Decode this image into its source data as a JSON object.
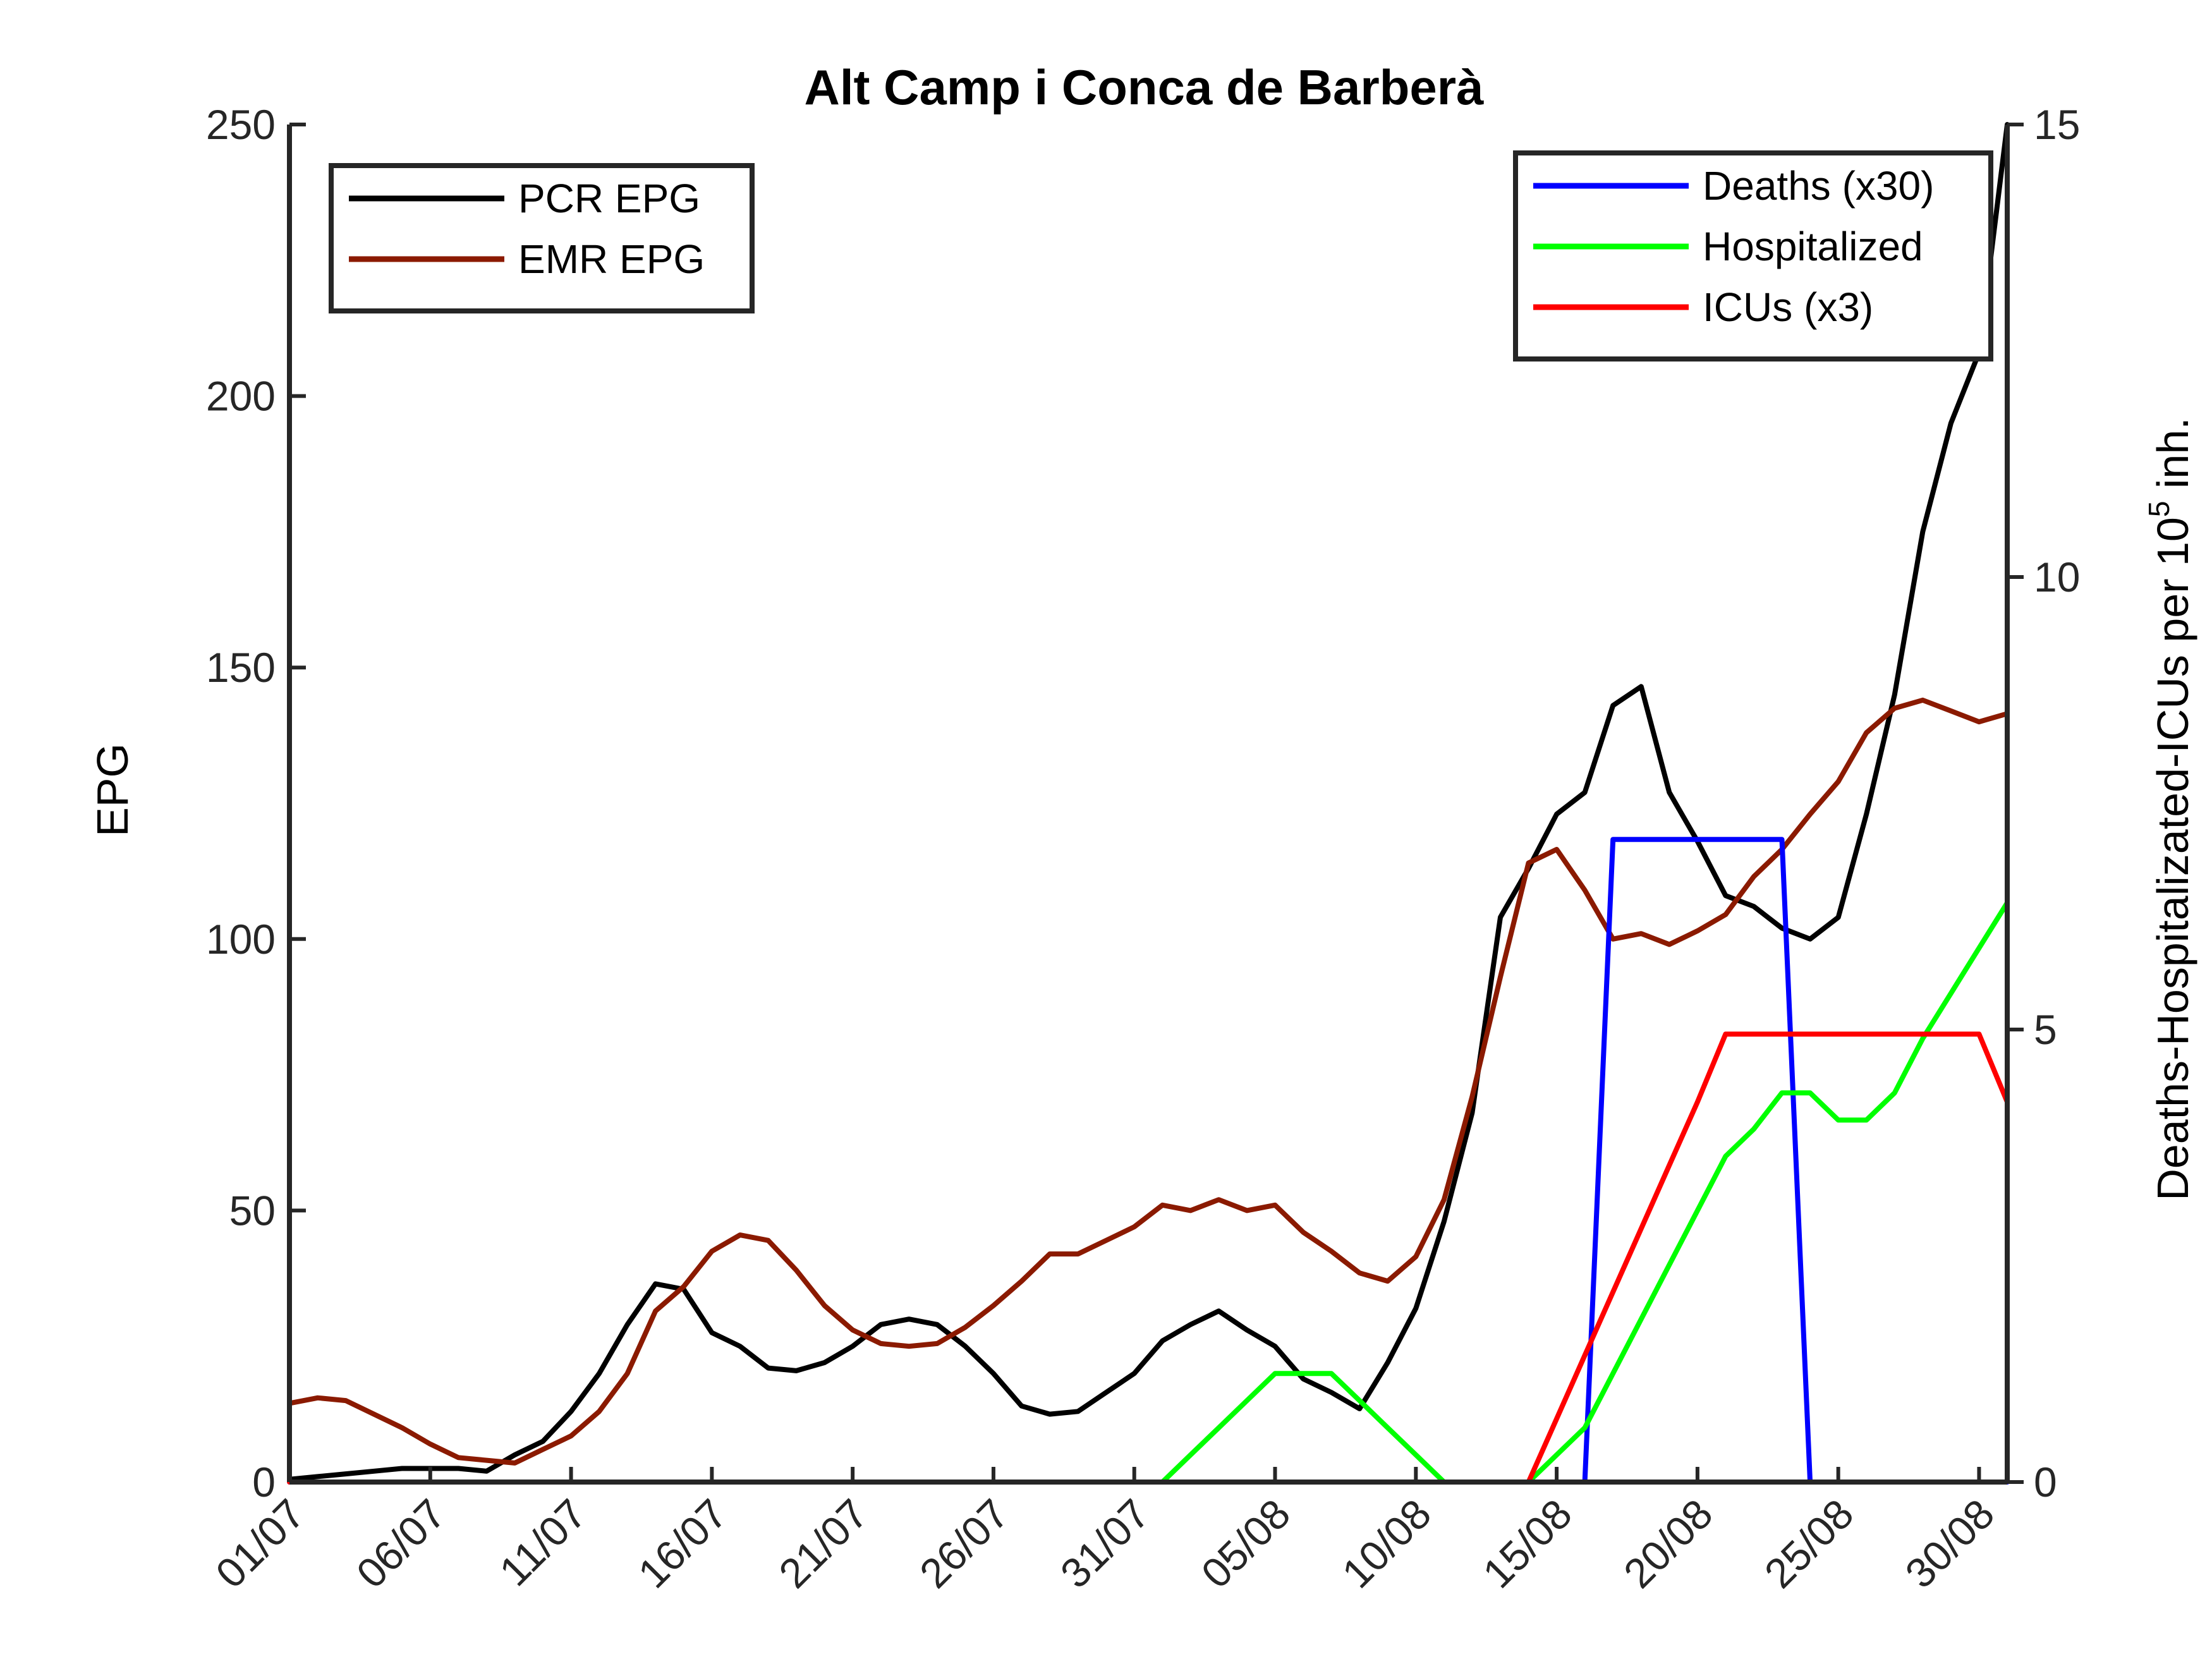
{
  "chart_data": {
    "type": "line",
    "title": "Alt Camp i Conca de Barberà",
    "xlabel": "",
    "ylabel_left": "EPG",
    "ylabel_right": "Deaths-Hospitalizated-ICUs per 10",
    "ylabel_right_superscript": "5",
    "ylabel_right_suffix": " inh.",
    "x_dates": [
      "01/07",
      "02/07",
      "03/07",
      "04/07",
      "05/07",
      "06/07",
      "07/07",
      "08/07",
      "09/07",
      "10/07",
      "11/07",
      "12/07",
      "13/07",
      "14/07",
      "15/07",
      "16/07",
      "17/07",
      "18/07",
      "19/07",
      "20/07",
      "21/07",
      "22/07",
      "23/07",
      "24/07",
      "25/07",
      "26/07",
      "27/07",
      "28/07",
      "29/07",
      "30/07",
      "31/07",
      "01/08",
      "02/08",
      "03/08",
      "04/08",
      "05/08",
      "06/08",
      "07/08",
      "08/08",
      "09/08",
      "10/08",
      "11/08",
      "12/08",
      "13/08",
      "14/08",
      "15/08",
      "16/08",
      "17/08",
      "18/08",
      "19/08",
      "20/08",
      "21/08",
      "22/08",
      "23/08",
      "24/08",
      "25/08",
      "26/08",
      "27/08",
      "28/08",
      "29/08",
      "30/08",
      "31/08"
    ],
    "x_tick_labels": [
      "01/07",
      "06/07",
      "11/07",
      "16/07",
      "21/07",
      "26/07",
      "31/07",
      "05/08",
      "10/08",
      "15/08",
      "20/08",
      "25/08",
      "30/08"
    ],
    "x_tick_step": 5,
    "y_left": {
      "min": 0,
      "max": 250,
      "ticks": [
        0,
        50,
        100,
        150,
        200,
        250
      ]
    },
    "y_right": {
      "min": 0,
      "max": 15,
      "ticks": [
        0,
        5,
        10,
        15
      ]
    },
    "grid": false,
    "series": [
      {
        "name": "PCR EPG",
        "axis": "left",
        "color": "#000000",
        "values": [
          0.5,
          1,
          1.5,
          2,
          2.5,
          2.5,
          2.5,
          2,
          5,
          7.5,
          13,
          20,
          29,
          36.5,
          35.5,
          27.5,
          25,
          21,
          20.5,
          22,
          25,
          29,
          30,
          29,
          25,
          20,
          14,
          12.5,
          13,
          16.5,
          20,
          26,
          29,
          31.5,
          28,
          25,
          19,
          16.5,
          13.5,
          22,
          32,
          48,
          68,
          104,
          113,
          123,
          127,
          143,
          146.5,
          127,
          118,
          108,
          106,
          102,
          100,
          104,
          123,
          145,
          175,
          195,
          208,
          250
        ]
      },
      {
        "name": "EMR EPG",
        "axis": "left",
        "color": "#8B1A00",
        "values": [
          14.5,
          15.5,
          15,
          12.5,
          10,
          7,
          4.5,
          4,
          3.5,
          6,
          8.5,
          13,
          20,
          31.5,
          36,
          42.5,
          45.5,
          44.5,
          39,
          32.5,
          28,
          25.5,
          25,
          25.5,
          28.5,
          32.5,
          37,
          42,
          42,
          44.5,
          47,
          51,
          50,
          52,
          50,
          51,
          46,
          42.5,
          38.5,
          37,
          41.5,
          52,
          71,
          93,
          114,
          116.5,
          109,
          100,
          101,
          99,
          101.5,
          104.5,
          111.5,
          116.5,
          123,
          129,
          138,
          142.5,
          144,
          142,
          140,
          141.5
        ]
      },
      {
        "name": "Deaths (x30)",
        "axis": "right",
        "color": "#0000FF",
        "values": [
          0,
          0,
          0,
          0,
          0,
          0,
          0,
          0,
          0,
          0,
          0,
          0,
          0,
          0,
          0,
          0,
          0,
          0,
          0,
          0,
          0,
          0,
          0,
          0,
          0,
          0,
          0,
          0,
          0,
          0,
          0,
          0,
          0,
          0,
          0,
          0,
          0,
          0,
          0,
          0,
          0,
          0,
          0,
          0,
          0,
          0,
          0,
          7.1,
          7.1,
          7.1,
          7.1,
          7.1,
          7.1,
          7.1,
          0,
          0,
          0,
          0,
          0,
          0,
          0,
          0
        ]
      },
      {
        "name": "Hospitalized",
        "axis": "right",
        "color": "#00FF00",
        "values": [
          null,
          null,
          null,
          null,
          null,
          null,
          null,
          null,
          null,
          null,
          null,
          null,
          null,
          null,
          null,
          null,
          null,
          null,
          null,
          null,
          null,
          null,
          null,
          null,
          null,
          null,
          null,
          null,
          null,
          null,
          null,
          0,
          0.3,
          0.6,
          0.9,
          1.2,
          1.2,
          1.2,
          0.9,
          0.6,
          0.3,
          0,
          null,
          null,
          0,
          0.3,
          0.6,
          1.2,
          1.8,
          2.4,
          3,
          3.6,
          3.9,
          4.3,
          4.3,
          4,
          4,
          4.3,
          4.9,
          5.4,
          5.9,
          6.4
        ]
      },
      {
        "name": "ICUs (x3)",
        "axis": "right",
        "color": "#FF0000",
        "values": [
          0,
          0,
          0,
          0,
          0,
          0,
          0,
          0,
          0,
          0,
          0,
          0,
          0,
          0,
          0,
          0,
          0,
          0,
          0,
          0,
          0,
          0,
          0,
          0,
          0,
          0,
          0,
          0,
          0,
          0,
          0,
          0,
          0,
          0,
          0,
          0,
          0,
          0,
          0,
          0,
          0,
          0,
          0,
          0,
          0,
          0.7,
          1.4,
          2.1,
          2.8,
          3.5,
          4.2,
          4.95,
          4.95,
          4.95,
          4.95,
          4.95,
          4.95,
          4.95,
          4.95,
          4.95,
          4.95,
          4.2
        ]
      }
    ],
    "legend_left": [
      "PCR EPG",
      "EMR EPG"
    ],
    "legend_left_placement": "top-left",
    "legend_right": [
      "Deaths (x30)",
      "Hospitalized",
      "ICUs (x3)"
    ],
    "legend_right_placement": "top-right"
  }
}
